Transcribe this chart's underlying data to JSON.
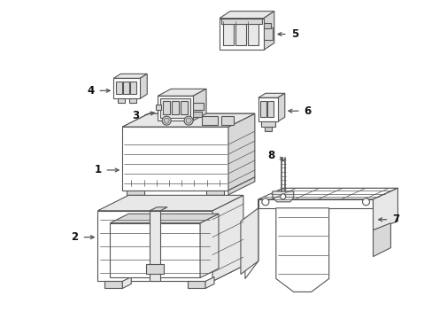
{
  "background_color": "#ffffff",
  "line_color": "#555555",
  "line_width": 0.8,
  "label_fontsize": 8.5,
  "label_color": "#111111",
  "fig_w": 4.89,
  "fig_h": 3.6,
  "dpi": 100
}
